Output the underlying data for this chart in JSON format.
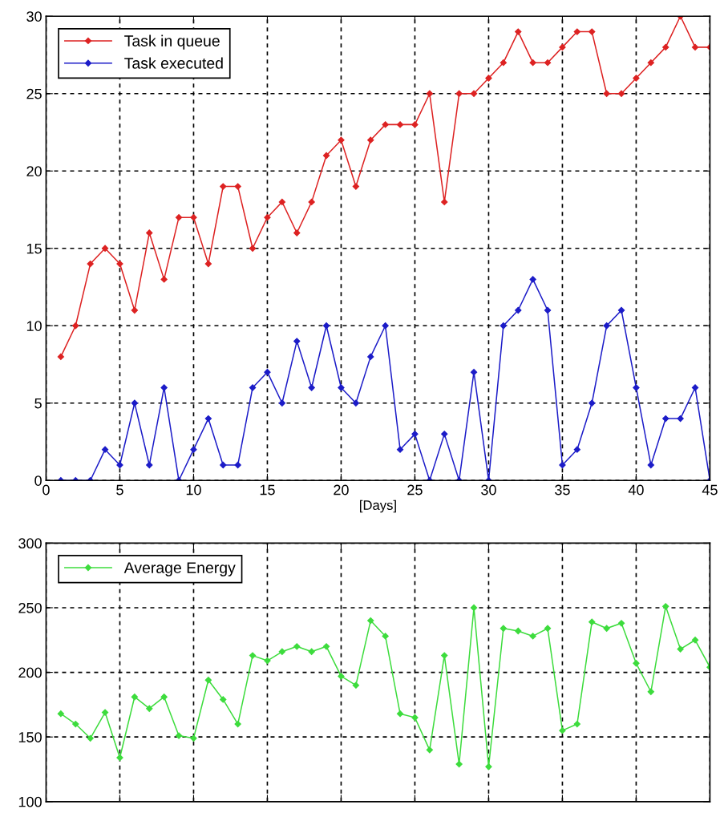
{
  "chart_data": [
    {
      "type": "line",
      "xlabel": "[Days]",
      "x": [
        1,
        2,
        3,
        4,
        5,
        6,
        7,
        8,
        9,
        10,
        11,
        12,
        13,
        14,
        15,
        16,
        17,
        18,
        19,
        20,
        21,
        22,
        23,
        24,
        25,
        26,
        27,
        28,
        29,
        30,
        31,
        32,
        33,
        34,
        35,
        36,
        37,
        38,
        39,
        40,
        41,
        42,
        43,
        44,
        45
      ],
      "series": [
        {
          "name": "Task in queue",
          "color": "#dd2222",
          "values": [
            8,
            10,
            14,
            15,
            14,
            11,
            16,
            13,
            17,
            17,
            14,
            19,
            19,
            15,
            17,
            18,
            16,
            18,
            21,
            22,
            19,
            22,
            23,
            23,
            23,
            25,
            18,
            25,
            25,
            26,
            27,
            29,
            27,
            27,
            28,
            29,
            29,
            25,
            25,
            26,
            27,
            28,
            30,
            28,
            28
          ]
        },
        {
          "name": "Task executed",
          "color": "#1c1cc8",
          "values": [
            0,
            0,
            0,
            2,
            1,
            5,
            1,
            6,
            0,
            2,
            4,
            1,
            1,
            6,
            7,
            5,
            9,
            6,
            10,
            6,
            5,
            8,
            10,
            2,
            3,
            0,
            3,
            0,
            7,
            0,
            10,
            11,
            13,
            11,
            1,
            2,
            5,
            10,
            11,
            6,
            1,
            4,
            4,
            6,
            0
          ]
        }
      ],
      "xlim": [
        0,
        45
      ],
      "xticks": [
        0,
        5,
        10,
        15,
        20,
        25,
        30,
        35,
        40,
        45
      ],
      "ylim": [
        0,
        30
      ],
      "yticks": [
        0,
        5,
        10,
        15,
        20,
        25,
        30
      ],
      "grid": true,
      "legend": "top left",
      "marker": "diamond",
      "line_style": "solid"
    },
    {
      "type": "line",
      "x": [
        1,
        2,
        3,
        4,
        5,
        6,
        7,
        8,
        9,
        10,
        11,
        12,
        13,
        14,
        15,
        16,
        17,
        18,
        19,
        20,
        21,
        22,
        23,
        24,
        25,
        26,
        27,
        28,
        29,
        30,
        31,
        32,
        33,
        34,
        35,
        36,
        37,
        38,
        39,
        40,
        41,
        42,
        43,
        44,
        45
      ],
      "series": [
        {
          "name": "Average Energy",
          "color": "#3ddc3d",
          "values": [
            168,
            160,
            149,
            169,
            134,
            181,
            172,
            181,
            151,
            149,
            194,
            179,
            160,
            213,
            209,
            216,
            220,
            216,
            220,
            197,
            190,
            240,
            228,
            168,
            165,
            140,
            213,
            129,
            250,
            127,
            234,
            232,
            228,
            234,
            155,
            160,
            239,
            234,
            238,
            207,
            185,
            251,
            218,
            225,
            204
          ]
        }
      ],
      "xlim": [
        0,
        45
      ],
      "xticks": [
        0,
        5,
        10,
        15,
        20,
        25,
        30,
        35,
        40,
        45
      ],
      "ylim": [
        100,
        300
      ],
      "yticks": [
        100,
        150,
        200,
        250,
        300
      ],
      "tick_labels": "y",
      "grid": true,
      "legend": "top left",
      "marker": "diamond",
      "line_style": "solid"
    }
  ]
}
